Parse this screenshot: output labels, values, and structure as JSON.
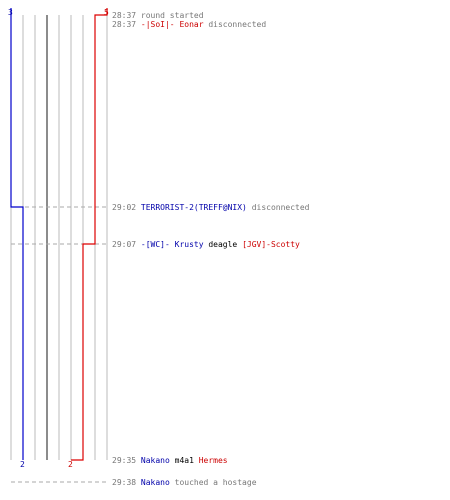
{
  "colors": {
    "ct": "#0000cc",
    "t": "#dd0000",
    "grid": "#bbbbbb",
    "grid_dark": "#666666",
    "dash": "#aaaaaa",
    "time": "#777777",
    "ct_name": "#0000aa",
    "t_name": "#cc0000"
  },
  "chart_data": {
    "type": "line",
    "x_unit": "time",
    "series": [
      {
        "color": "#0000cc",
        "start_count": 3,
        "end_count": 2,
        "points": [
          {
            "time": "28:37",
            "count": 3
          },
          {
            "time": "29:02",
            "count": 2
          },
          {
            "time": "29:35",
            "count": 2
          }
        ]
      },
      {
        "color": "#dd0000",
        "start_count": 5,
        "end_count": 2,
        "points": [
          {
            "time": "28:37",
            "count": 5
          },
          {
            "time": "28:37",
            "count": 4
          },
          {
            "time": "29:07",
            "count": 3
          },
          {
            "time": "29:35",
            "count": 2
          }
        ]
      }
    ]
  },
  "labels": {
    "ct_start": "3",
    "t_start": "5",
    "ct_end": "2",
    "t_end": "2"
  },
  "events": [
    {
      "time": "28:37",
      "parts": [
        {
          "text": "round started",
          "style": "g"
        }
      ]
    },
    {
      "time": "28:37",
      "parts": [
        {
          "text": "-|SoI|- Eonar",
          "style": "r"
        },
        {
          "text": " disconnected",
          "style": "g"
        }
      ]
    },
    {
      "time": "29:02",
      "parts": [
        {
          "text": "TERRORIST-2(TREFF@NIX)",
          "style": "b"
        },
        {
          "text": " disconnected",
          "style": "g"
        }
      ]
    },
    {
      "time": "29:07",
      "parts": [
        {
          "text": "-[WC]- Krusty",
          "style": "b"
        },
        {
          "text": " deagle ",
          "style": "k"
        },
        {
          "text": "[JGV]-Scotty",
          "style": "r"
        }
      ]
    },
    {
      "time": "29:35",
      "parts": [
        {
          "text": "Nakano",
          "style": "b"
        },
        {
          "text": " m4a1 ",
          "style": "k"
        },
        {
          "text": "Hermes",
          "style": "r"
        }
      ]
    },
    {
      "time": "29:38",
      "parts": [
        {
          "text": "Nakano",
          "style": "b"
        },
        {
          "text": " touched a hostage",
          "style": "g"
        }
      ]
    }
  ]
}
